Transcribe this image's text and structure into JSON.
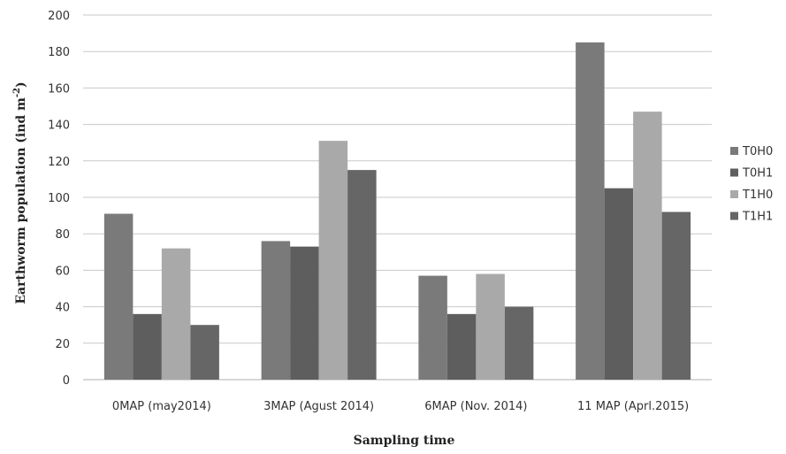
{
  "chart_data": {
    "type": "bar",
    "title": "",
    "xlabel": "Sampling time",
    "ylabel_main": "Earthworm population (ind m",
    "ylabel_sup": "-2",
    "ylabel_close": ")",
    "categories": [
      "0MAP (may2014)",
      "3MAP (Agust 2014)",
      "6MAP (Nov. 2014)",
      "11 MAP (Aprl.2015)"
    ],
    "series": [
      {
        "name": "T0H0",
        "values": [
          91,
          76,
          57,
          185
        ],
        "color": "#7a7a7a"
      },
      {
        "name": "T0H1",
        "values": [
          36,
          73,
          36,
          105
        ],
        "color": "#5e5e5e"
      },
      {
        "name": "T1H0",
        "values": [
          72,
          131,
          58,
          147
        ],
        "color": "#a9a9a9"
      },
      {
        "name": "T1H1",
        "values": [
          30,
          115,
          40,
          92
        ],
        "color": "#666666"
      }
    ],
    "ylim": [
      0,
      200
    ],
    "yticks": [
      "0",
      "20",
      "40",
      "60",
      "80",
      "100",
      "120",
      "140",
      "160",
      "180",
      "200"
    ],
    "grid": true,
    "legend_position": "right"
  }
}
